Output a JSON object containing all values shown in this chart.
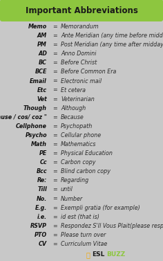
{
  "title": "Important Abbreviations",
  "title_bg": "#8dc63f",
  "bg_color": "#c8c8c8",
  "rows": [
    [
      "Memo",
      "=",
      "Memorandum"
    ],
    [
      "AM",
      "=",
      "Ante Meridian (any time before midday)"
    ],
    [
      "PM",
      "=",
      "Post Meridian (any time after midday)"
    ],
    [
      "AD",
      "=",
      "Anno Domini"
    ],
    [
      "BC",
      "=",
      "Before Christ"
    ],
    [
      "BCE",
      "=",
      "Before Common Era"
    ],
    [
      "Email",
      "=",
      "Electronic mail"
    ],
    [
      "Etc",
      "=",
      "Et cetera"
    ],
    [
      "Vet",
      "=",
      "Veterinarian"
    ],
    [
      "Though",
      "=",
      "Although"
    ],
    [
      "\"cause / cos/ coz \"",
      "=",
      "Because"
    ],
    [
      "Cellphone",
      "=",
      "Psychopath"
    ],
    [
      "Psycho",
      "=",
      "Cellular phone"
    ],
    [
      "Math",
      "=",
      "Mathematics"
    ],
    [
      "PE",
      "=",
      "Physical Education"
    ],
    [
      "Cc",
      "=",
      "Carbon copy"
    ],
    [
      "Bcc",
      "=",
      "Blind carbon copy"
    ],
    [
      "Re:",
      "=",
      "Regarding"
    ],
    [
      "Till",
      "=",
      "until"
    ],
    [
      "No.",
      "=",
      "Number"
    ],
    [
      "E.g.",
      "=",
      "Exempli gratia (for example)"
    ],
    [
      "i.e.",
      "=",
      "id est (that is)"
    ],
    [
      "RSVP",
      "=",
      "Respondez S'Il Vous Plait(please respond)"
    ],
    [
      "PTO",
      "=",
      "Please turn over"
    ],
    [
      "CV",
      "=",
      "Curriculum Vitae"
    ]
  ],
  "text_color": "#2a2a2a",
  "abbr_color": "#111111",
  "eq_color": "#333333",
  "font_size": 5.8,
  "title_font_size": 8.5,
  "title_text_color": "#1a1a1a",
  "footer_bee_color": "#f5a800",
  "footer_esl_color": "#1a1a1a",
  "footer_buzz_color": "#8dc63f"
}
